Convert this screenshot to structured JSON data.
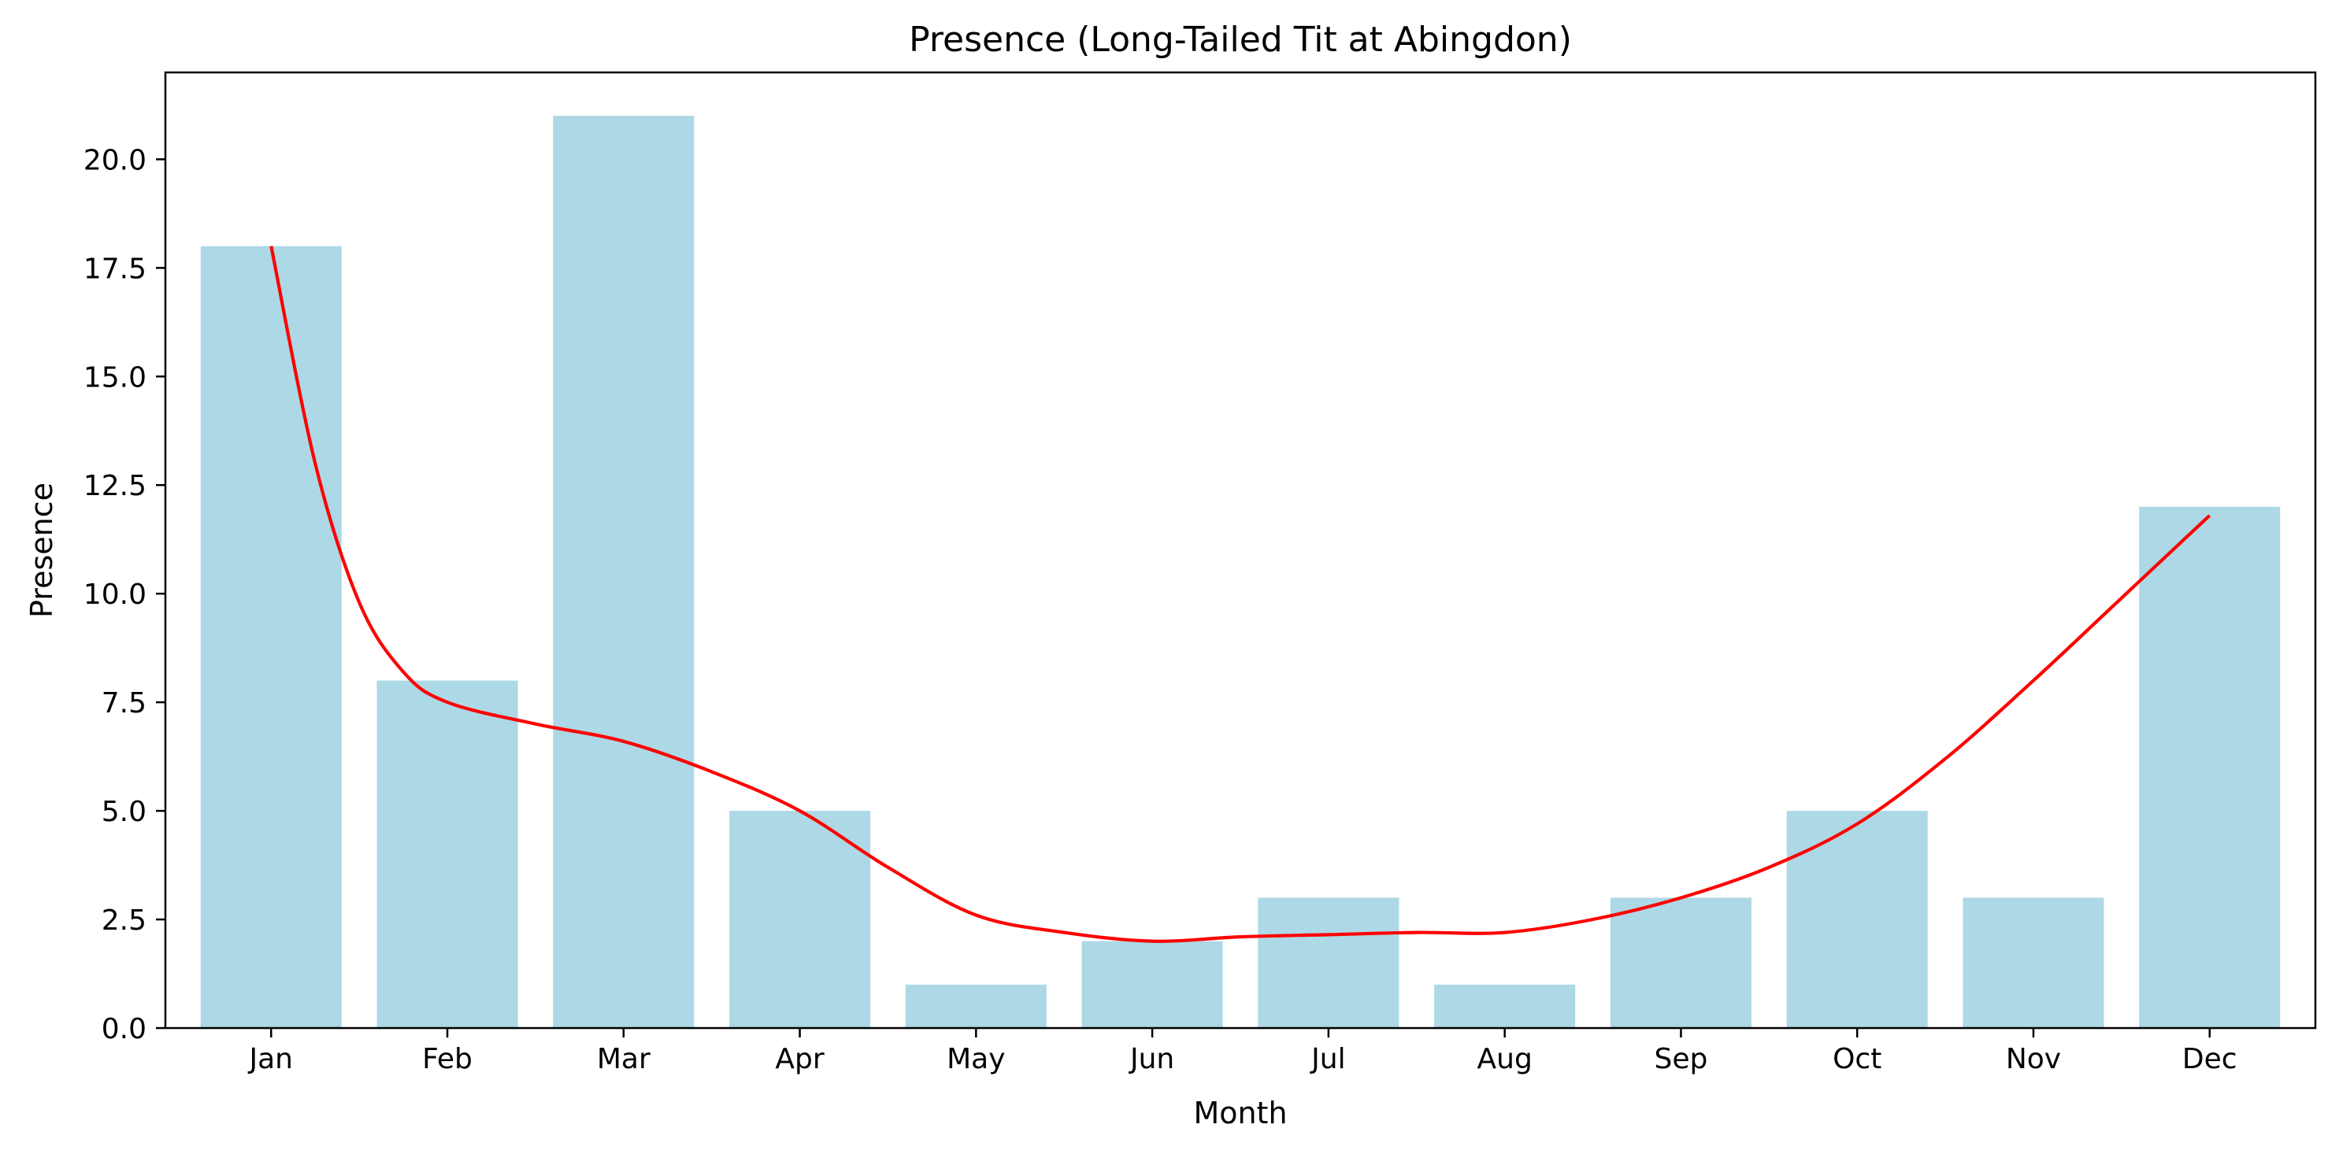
{
  "chart_data": {
    "type": "bar",
    "title": "Presence (Long-Tailed Tit at Abingdon)",
    "xlabel": "Month",
    "ylabel": "Presence",
    "categories": [
      "Jan",
      "Feb",
      "Mar",
      "Apr",
      "May",
      "Jun",
      "Jul",
      "Aug",
      "Sep",
      "Oct",
      "Nov",
      "Dec"
    ],
    "values": [
      18,
      8,
      21,
      5,
      1,
      2,
      3,
      1,
      3,
      5,
      3,
      12
    ],
    "trend": [
      {
        "x": 0,
        "y": 18.0
      },
      {
        "x": 0.25,
        "y": 13.0
      },
      {
        "x": 0.5,
        "y": 9.8
      },
      {
        "x": 0.75,
        "y": 8.2
      },
      {
        "x": 1,
        "y": 7.5
      },
      {
        "x": 1.5,
        "y": 7.0
      },
      {
        "x": 2,
        "y": 6.6
      },
      {
        "x": 2.5,
        "y": 5.9
      },
      {
        "x": 3,
        "y": 5.0
      },
      {
        "x": 3.5,
        "y": 3.7
      },
      {
        "x": 4,
        "y": 2.6
      },
      {
        "x": 4.5,
        "y": 2.2
      },
      {
        "x": 5,
        "y": 2.0
      },
      {
        "x": 5.5,
        "y": 2.1
      },
      {
        "x": 6,
        "y": 2.15
      },
      {
        "x": 6.5,
        "y": 2.2
      },
      {
        "x": 7,
        "y": 2.2
      },
      {
        "x": 7.5,
        "y": 2.5
      },
      {
        "x": 8,
        "y": 3.0
      },
      {
        "x": 8.5,
        "y": 3.7
      },
      {
        "x": 9,
        "y": 4.7
      },
      {
        "x": 9.5,
        "y": 6.2
      },
      {
        "x": 10,
        "y": 8.0
      },
      {
        "x": 10.5,
        "y": 9.9
      },
      {
        "x": 11,
        "y": 11.8
      }
    ],
    "yticks": [
      "0.0",
      "2.5",
      "5.0",
      "7.5",
      "10.0",
      "12.5",
      "15.0",
      "17.5",
      "20.0"
    ],
    "ylim": [
      0,
      22
    ],
    "xlim": [
      -0.6,
      11.6
    ],
    "grid": false,
    "bar_color": "#add8e6",
    "line_color": "#ff0000"
  }
}
